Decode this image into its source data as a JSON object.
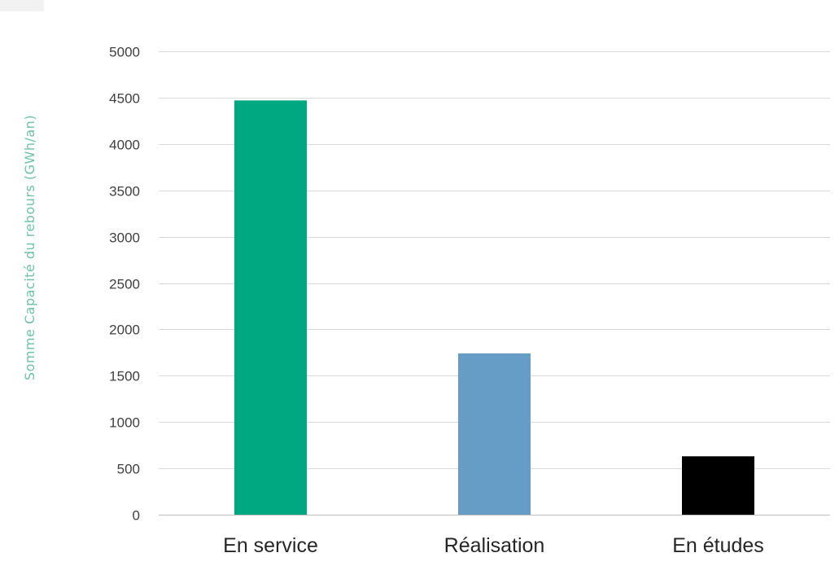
{
  "chart_data": {
    "type": "bar",
    "title": "",
    "xlabel": "",
    "ylabel": "Somme Capacité du rebours (GWh/an)",
    "ylim": [
      0,
      5000
    ],
    "yticks": [
      0,
      500,
      1000,
      1500,
      2000,
      2500,
      3000,
      3500,
      4000,
      4500,
      5000
    ],
    "categories": [
      "En service",
      "Réalisation",
      "En études"
    ],
    "values": [
      4470,
      1740,
      630
    ],
    "bar_colors": [
      "#00a882",
      "#659dc7",
      "#000000"
    ],
    "grid": true,
    "legend": "none"
  },
  "colors": {
    "ylabel": "#6cc3a6",
    "gridline": "#d9d9d9",
    "tick_text": "#404040"
  }
}
